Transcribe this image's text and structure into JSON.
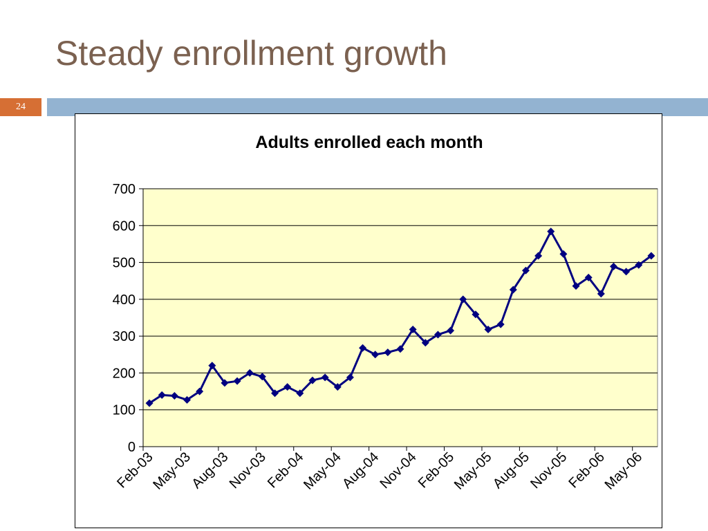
{
  "slide": {
    "title": "Steady enrollment growth",
    "page_number": "24"
  },
  "colors": {
    "title": "#7b6150",
    "band": "#93b3d1",
    "badge": "#d66f34",
    "plot_background": "#ffffcc",
    "series_line": "#000080"
  },
  "chart_data": {
    "type": "line",
    "title": "Adults enrolled each month",
    "xlabel": "",
    "ylabel": "",
    "ylim": [
      0,
      700
    ],
    "yticks": [
      0,
      100,
      200,
      300,
      400,
      500,
      600,
      700
    ],
    "grid": true,
    "legend": "none",
    "x": [
      "Feb-03",
      "Mar-03",
      "Apr-03",
      "May-03",
      "Jun-03",
      "Jul-03",
      "Aug-03",
      "Sep-03",
      "Oct-03",
      "Nov-03",
      "Dec-03",
      "Jan-04",
      "Feb-04",
      "Mar-04",
      "Apr-04",
      "May-04",
      "Jun-04",
      "Jul-04",
      "Aug-04",
      "Sep-04",
      "Oct-04",
      "Nov-04",
      "Dec-04",
      "Jan-05",
      "Feb-05",
      "Mar-05",
      "Apr-05",
      "May-05",
      "Jun-05",
      "Jul-05",
      "Aug-05",
      "Sep-05",
      "Oct-05",
      "Nov-05",
      "Dec-05",
      "Jan-06",
      "Feb-06",
      "Mar-06",
      "Apr-06",
      "May-06",
      "Jun-06"
    ],
    "xtick_labels": [
      "Feb-03",
      "May-03",
      "Aug-03",
      "Nov-03",
      "Feb-04",
      "May-04",
      "Aug-04",
      "Nov-04",
      "Feb-05",
      "May-05",
      "Aug-05",
      "Nov-05",
      "Feb-06",
      "May-06"
    ],
    "series": [
      {
        "values": [
          118,
          140,
          138,
          127,
          150,
          220,
          173,
          178,
          200,
          190,
          145,
          162,
          145,
          180,
          188,
          162,
          188,
          268,
          250,
          256,
          265,
          318,
          282,
          304,
          315,
          400,
          359,
          318,
          332,
          426,
          478,
          518,
          584,
          523,
          436,
          459,
          415,
          489,
          475,
          493,
          518
        ]
      }
    ]
  }
}
